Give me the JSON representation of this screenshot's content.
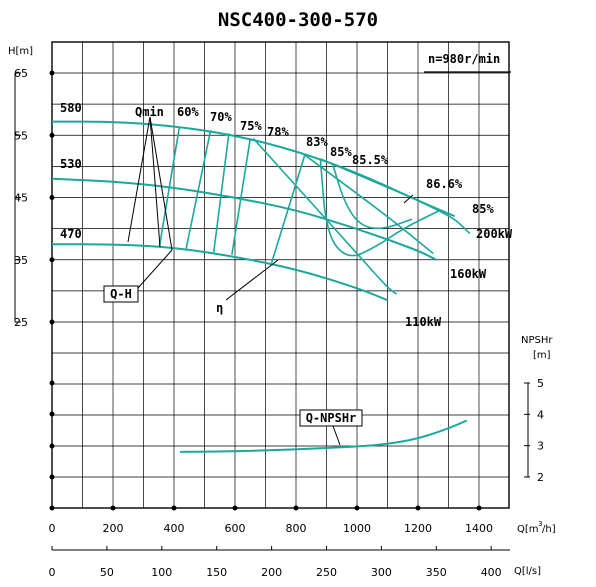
{
  "chart_data": {
    "type": "line",
    "title": "NSC400-300-570",
    "speed": "n=980r/min",
    "x_q": {
      "unit": "Q[m3/h]",
      "range": [
        0,
        1400
      ],
      "ticks": [
        0,
        200,
        400,
        600,
        800,
        1000,
        1200,
        1400
      ]
    },
    "x_ls": {
      "unit": "Q[l/s]",
      "ticks": [
        0,
        50,
        100,
        150,
        200,
        250,
        300,
        350,
        400
      ]
    },
    "y_h": {
      "unit": "H[m]",
      "range": [
        25,
        65
      ],
      "ticks": [
        25,
        35,
        45,
        55,
        65
      ]
    },
    "y_npsh": {
      "unit": "NPSHr [m]",
      "range": [
        2,
        5
      ],
      "ticks": [
        2,
        3,
        4,
        5
      ]
    },
    "grid": true,
    "impeller_curves": [
      {
        "name": "580",
        "points": [
          [
            0,
            57.2
          ],
          [
            200,
            57.2
          ],
          [
            400,
            56.5
          ],
          [
            600,
            55
          ],
          [
            800,
            52.5
          ],
          [
            1000,
            49
          ],
          [
            1200,
            44.5
          ],
          [
            1320,
            42
          ]
        ]
      },
      {
        "name": "530",
        "points": [
          [
            0,
            48
          ],
          [
            200,
            47.6
          ],
          [
            400,
            46.6
          ],
          [
            600,
            45
          ],
          [
            800,
            43
          ],
          [
            1000,
            40
          ],
          [
            1200,
            36.5
          ],
          [
            1260,
            35
          ]
        ]
      },
      {
        "name": "470",
        "points": [
          [
            0,
            37.5
          ],
          [
            200,
            37.5
          ],
          [
            400,
            37
          ],
          [
            600,
            35.5
          ],
          [
            800,
            33.5
          ],
          [
            1000,
            30.5
          ],
          [
            1100,
            28.5
          ]
        ]
      }
    ],
    "efficiency_lines": [
      {
        "name": "60%",
        "points": [
          [
            418,
            56.4
          ],
          [
            352,
            37.1
          ]
        ]
      },
      {
        "name": "70%",
        "points": [
          [
            520,
            55.8
          ],
          [
            440,
            36.8
          ]
        ]
      },
      {
        "name": "75%",
        "points": [
          [
            580,
            55.3
          ],
          [
            530,
            36.2
          ]
        ]
      },
      {
        "name": "78%",
        "points": [
          [
            650,
            54.5
          ],
          [
            590,
            35.8
          ]
        ]
      },
      {
        "name": "83%",
        "points": [
          [
            830,
            52
          ],
          [
            720,
            34.5
          ]
        ]
      },
      {
        "name": "85%",
        "points": [
          [
            880,
            51.2
          ],
          [
            900,
            39
          ],
          [
            970,
            35
          ],
          [
            1060,
            37
          ],
          [
            1150,
            40
          ],
          [
            1270,
            42.9
          ]
        ]
      },
      {
        "name": "85.5%",
        "points": [
          [
            920,
            50.4
          ],
          [
            960,
            44
          ],
          [
            1010,
            40.5
          ],
          [
            1080,
            39.8
          ],
          [
            1180,
            41.5
          ]
        ]
      },
      {
        "name": "86.6%",
        "points": []
      }
    ],
    "power_lines": [
      {
        "name": "200kW",
        "points": [
          [
            880,
            51.2
          ],
          [
            1300,
            42.5
          ],
          [
            1370,
            39.2
          ]
        ]
      },
      {
        "name": "160kW",
        "points": [
          [
            830,
            51.8
          ],
          [
            1100,
            42
          ],
          [
            1250,
            36
          ]
        ]
      },
      {
        "name": "110kW",
        "points": [
          [
            660,
            54.5
          ],
          [
            1000,
            36
          ],
          [
            1100,
            30.5
          ],
          [
            1130,
            29.5
          ]
        ]
      }
    ],
    "qmin": {
      "name": "Qmin"
    },
    "npsh_curve": {
      "name": "Q-NPSHr",
      "points": [
        [
          420,
          2.8
        ],
        [
          600,
          2.82
        ],
        [
          800,
          2.88
        ],
        [
          1000,
          2.97
        ],
        [
          1100,
          3.05
        ],
        [
          1200,
          3.22
        ],
        [
          1300,
          3.55
        ],
        [
          1360,
          3.8
        ]
      ]
    },
    "annotations": {
      "qh": "Q-H",
      "eta": "η",
      "npsh": "Q-NPSHr"
    }
  }
}
